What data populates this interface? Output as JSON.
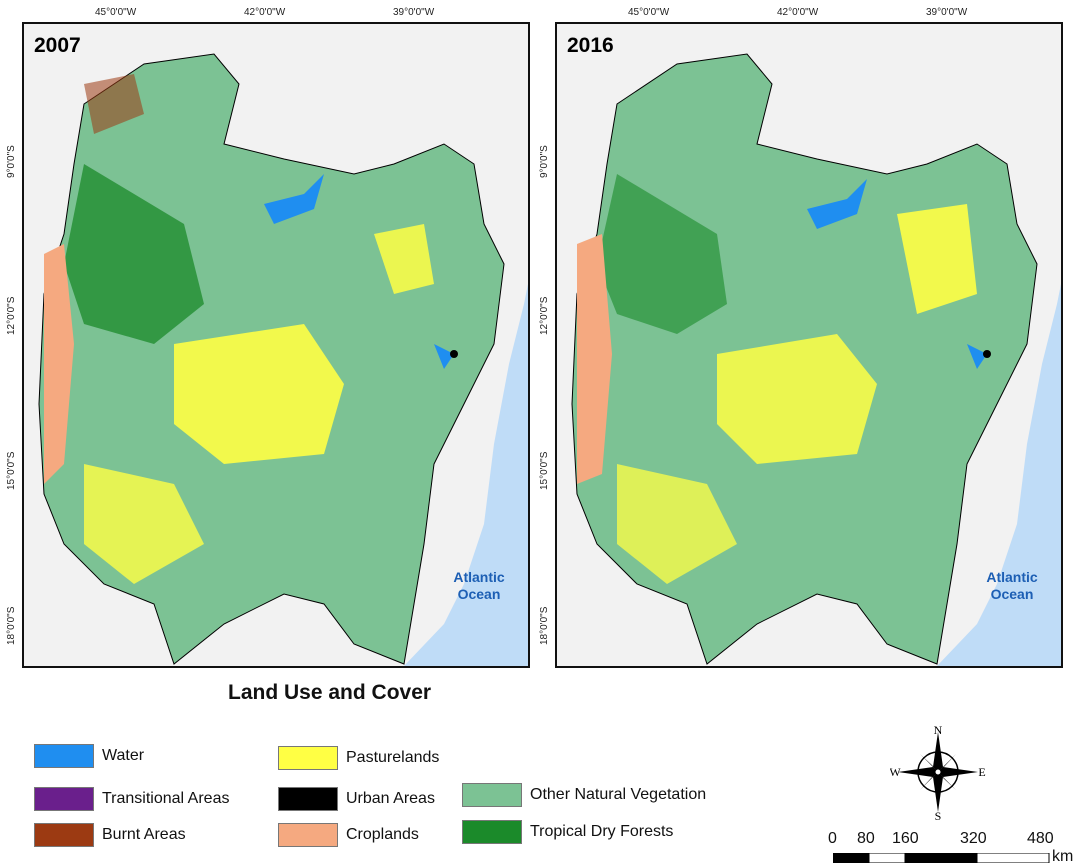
{
  "maps": [
    {
      "year": "2007",
      "ocean_label": [
        "Atlantic",
        "Ocean"
      ]
    },
    {
      "year": "2016",
      "ocean_label": [
        "Atlantic",
        "Ocean"
      ]
    }
  ],
  "lon_ticks": [
    "45°0'0\"W",
    "42°0'0\"W",
    "39°0'0\"W"
  ],
  "lat_ticks": [
    "9°0'0\"S",
    "12°0'0\"S",
    "15°0'0\"S",
    "18°0'0\"S"
  ],
  "legend": {
    "title": "Land Use and Cover",
    "items": [
      {
        "label": "Water",
        "color": "#1f8ef0"
      },
      {
        "label": "Transitional Areas",
        "color": "#6a1f8c"
      },
      {
        "label": "Burnt Areas",
        "color": "#9c3a12"
      },
      {
        "label": "Pasturelands",
        "color": "#ffff44"
      },
      {
        "label": "Urban Areas",
        "color": "#000000"
      },
      {
        "label": "Croplands",
        "color": "#f5a980"
      },
      {
        "label": "Other Natural Vegetation",
        "color": "#7cc294"
      },
      {
        "label": "Tropical Dry Forests",
        "color": "#1b8a2a"
      }
    ]
  },
  "compass": {
    "n": "N",
    "s": "S",
    "e": "E",
    "w": "W"
  },
  "scale": {
    "ticks": [
      "0",
      "80",
      "160",
      "320",
      "480"
    ],
    "unit": "km"
  },
  "colors": {
    "ocean": "#bfdcf7",
    "land_outside": "#f2f2f2",
    "border": "#000000",
    "ocean_text": "#1d5fb4"
  }
}
